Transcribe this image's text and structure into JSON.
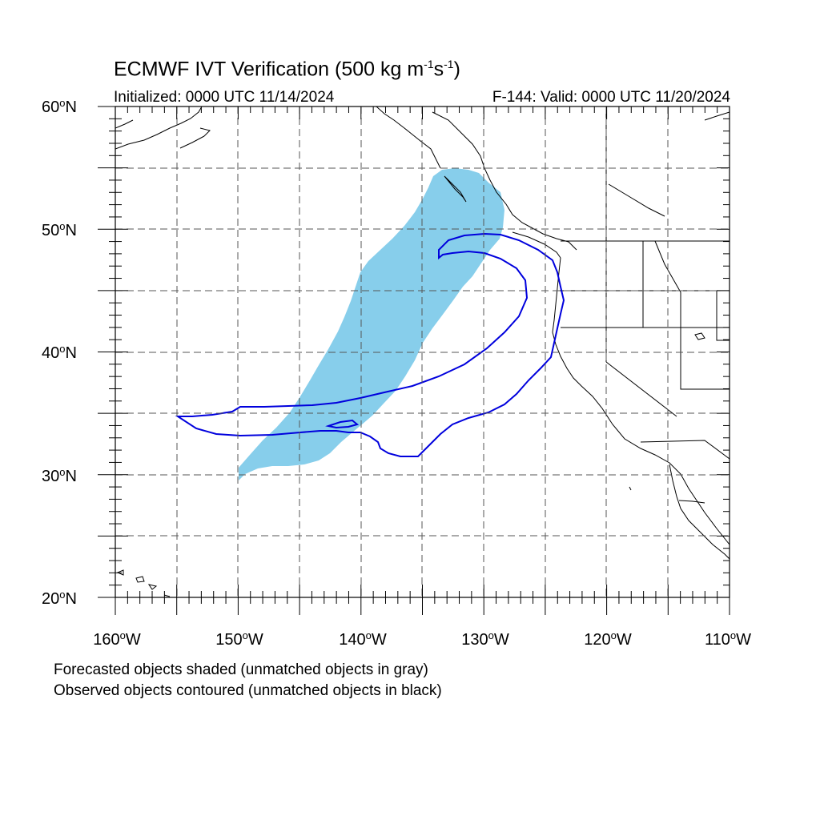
{
  "title": {
    "text": "ECMWF IVT Verification (500 kg m",
    "sup1": "-1",
    "mid": "s",
    "sup2": "-1",
    "end": ")"
  },
  "subtitle_left": "Initialized: 0000 UTC 11/14/2024",
  "subtitle_right": "F-144: Valid: 0000 UTC 11/20/2024",
  "lat_labels": [
    {
      "value": "60",
      "hemi": "N"
    },
    {
      "value": "50",
      "hemi": "N"
    },
    {
      "value": "40",
      "hemi": "N"
    },
    {
      "value": "30",
      "hemi": "N"
    },
    {
      "value": "20",
      "hemi": "N"
    }
  ],
  "lon_labels": [
    {
      "value": "160",
      "hemi": "W"
    },
    {
      "value": "150",
      "hemi": "W"
    },
    {
      "value": "140",
      "hemi": "W"
    },
    {
      "value": "130",
      "hemi": "W"
    },
    {
      "value": "120",
      "hemi": "W"
    },
    {
      "value": "110",
      "hemi": "W"
    }
  ],
  "legend": {
    "forecast_note": "Forecasted objects shaded (unmatched objects in gray)",
    "observed_note": "Observed objects contoured (unmatched objects in black)"
  },
  "colors": {
    "forecast_fill": "#87ceeb",
    "observed_contour": "#0000dd",
    "coastline": "#000000",
    "grid": "#555555"
  },
  "map": {
    "lon_range": [
      -160,
      -110
    ],
    "lat_range": [
      20,
      60
    ],
    "grid_step_deg": 5,
    "projection": "cylindrical equidistant"
  }
}
